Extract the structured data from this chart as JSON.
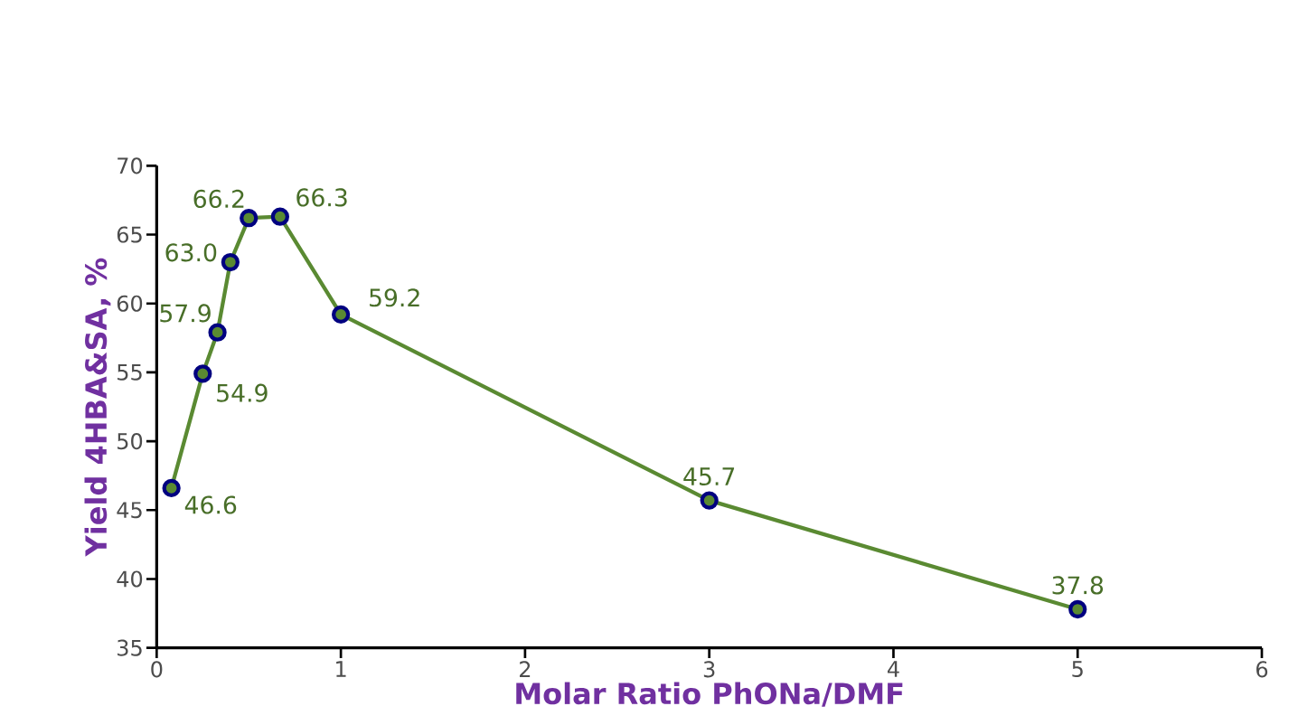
{
  "chart_data": {
    "type": "line",
    "xlabel": "Molar Ratio PhONa/DMF",
    "ylabel": "Yield 4HBA&SA, %",
    "x": [
      0.08,
      0.25,
      0.33,
      0.4,
      0.5,
      0.67,
      1,
      3,
      5
    ],
    "series": [
      {
        "color": "#5a8a32",
        "values": [
          46.6,
          54.9,
          57.9,
          63.0,
          66.2,
          66.3,
          59.2,
          45.7,
          37.8
        ],
        "value_labels": [
          "46.6",
          "54.9",
          "57.9",
          "63.0",
          "66.2",
          "66.3",
          "59.2",
          "45.7",
          "37.8"
        ]
      }
    ],
    "xlim": [
      0,
      6
    ],
    "xticks": [
      0,
      1,
      2,
      3,
      4,
      5,
      6
    ],
    "ylim": [
      35,
      70
    ],
    "yticks": [
      35,
      40,
      45,
      50,
      55,
      60,
      65,
      70
    ],
    "marker": "circle",
    "line_style": "solid"
  }
}
